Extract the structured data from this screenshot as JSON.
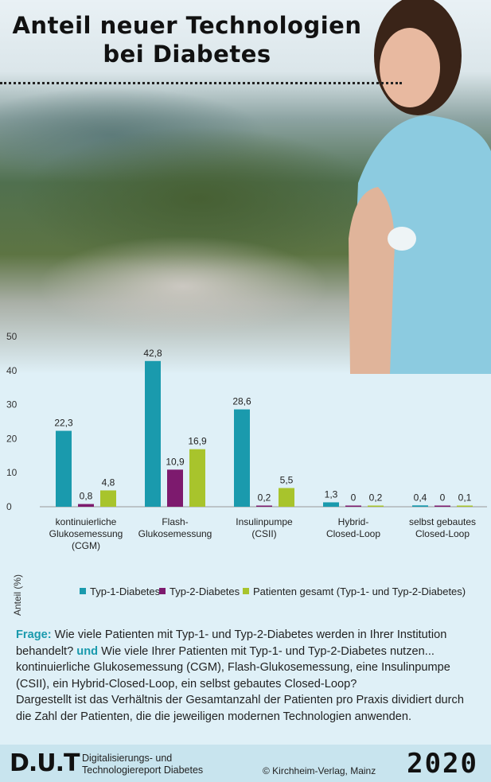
{
  "header": {
    "title_line1": "Anteil neuer Technologien",
    "title_line2": "bei Diabetes"
  },
  "colors": {
    "typ1": "#1a9aad",
    "typ2": "#7d1a6e",
    "gesamt": "#a8c42c"
  },
  "chart_data": {
    "type": "bar",
    "ylabel": "Anteil (%)",
    "ylim": [
      0,
      50
    ],
    "yticks": [
      "0",
      "10",
      "20",
      "30",
      "40",
      "50"
    ],
    "categories": [
      [
        "kontinuierliche",
        "Glukosemessung",
        "(CGM)"
      ],
      [
        "Flash-",
        "Glukosemessung"
      ],
      [
        "Insulinpumpe",
        "(CSII)"
      ],
      [
        "Hybrid-",
        "Closed-Loop"
      ],
      [
        "selbst gebautes",
        "Closed-Loop"
      ]
    ],
    "series": [
      {
        "name": "Typ-1-Diabetes",
        "values": [
          22.3,
          42.8,
          28.6,
          1.3,
          0.4
        ],
        "labels": [
          "22,3",
          "42,8",
          "28,6",
          "1,3",
          "0,4"
        ]
      },
      {
        "name": "Typ-2-Diabetes",
        "values": [
          0.8,
          10.9,
          0.2,
          0,
          0
        ],
        "labels": [
          "0,8",
          "10,9",
          "0,2",
          "0",
          "0"
        ]
      },
      {
        "name": "Patienten gesamt (Typ-1- und Typ-2-Diabetes)",
        "values": [
          4.8,
          16.9,
          5.5,
          0.2,
          0.1
        ],
        "labels": [
          "4,8",
          "16,9",
          "5,5",
          "0,2",
          "0,1"
        ]
      }
    ],
    "legend_position": "bottom"
  },
  "description": {
    "frage_label": "Frage:",
    "text1": " Wie viele Patienten mit Typ-1- und Typ-2-Diabetes werden in Ihrer Institution behandelt? ",
    "und_label": "und",
    "text2": " Wie viele Ihrer Patienten mit Typ-1- und Typ-2-Diabetes nutzen... kontinuierliche Glukosemessung (CGM), Flash-Glukosemessung, eine Insulinpumpe (CSII), ein Hybrid-Closed-Loop, ein selbst gebautes Closed-Loop?",
    "text3": "Dargestellt ist das Verhältnis der Gesamtanzahl der Patienten pro Praxis dividiert durch die Zahl der Patienten, die die jeweiligen modernen Technologien anwenden."
  },
  "footer": {
    "logo": "D.U.T",
    "desc_line1": "Digitalisierungs- und",
    "desc_line2": "Technologiereport Diabetes",
    "publisher": "© Kirchheim-Verlag, Mainz",
    "year": "2020"
  }
}
